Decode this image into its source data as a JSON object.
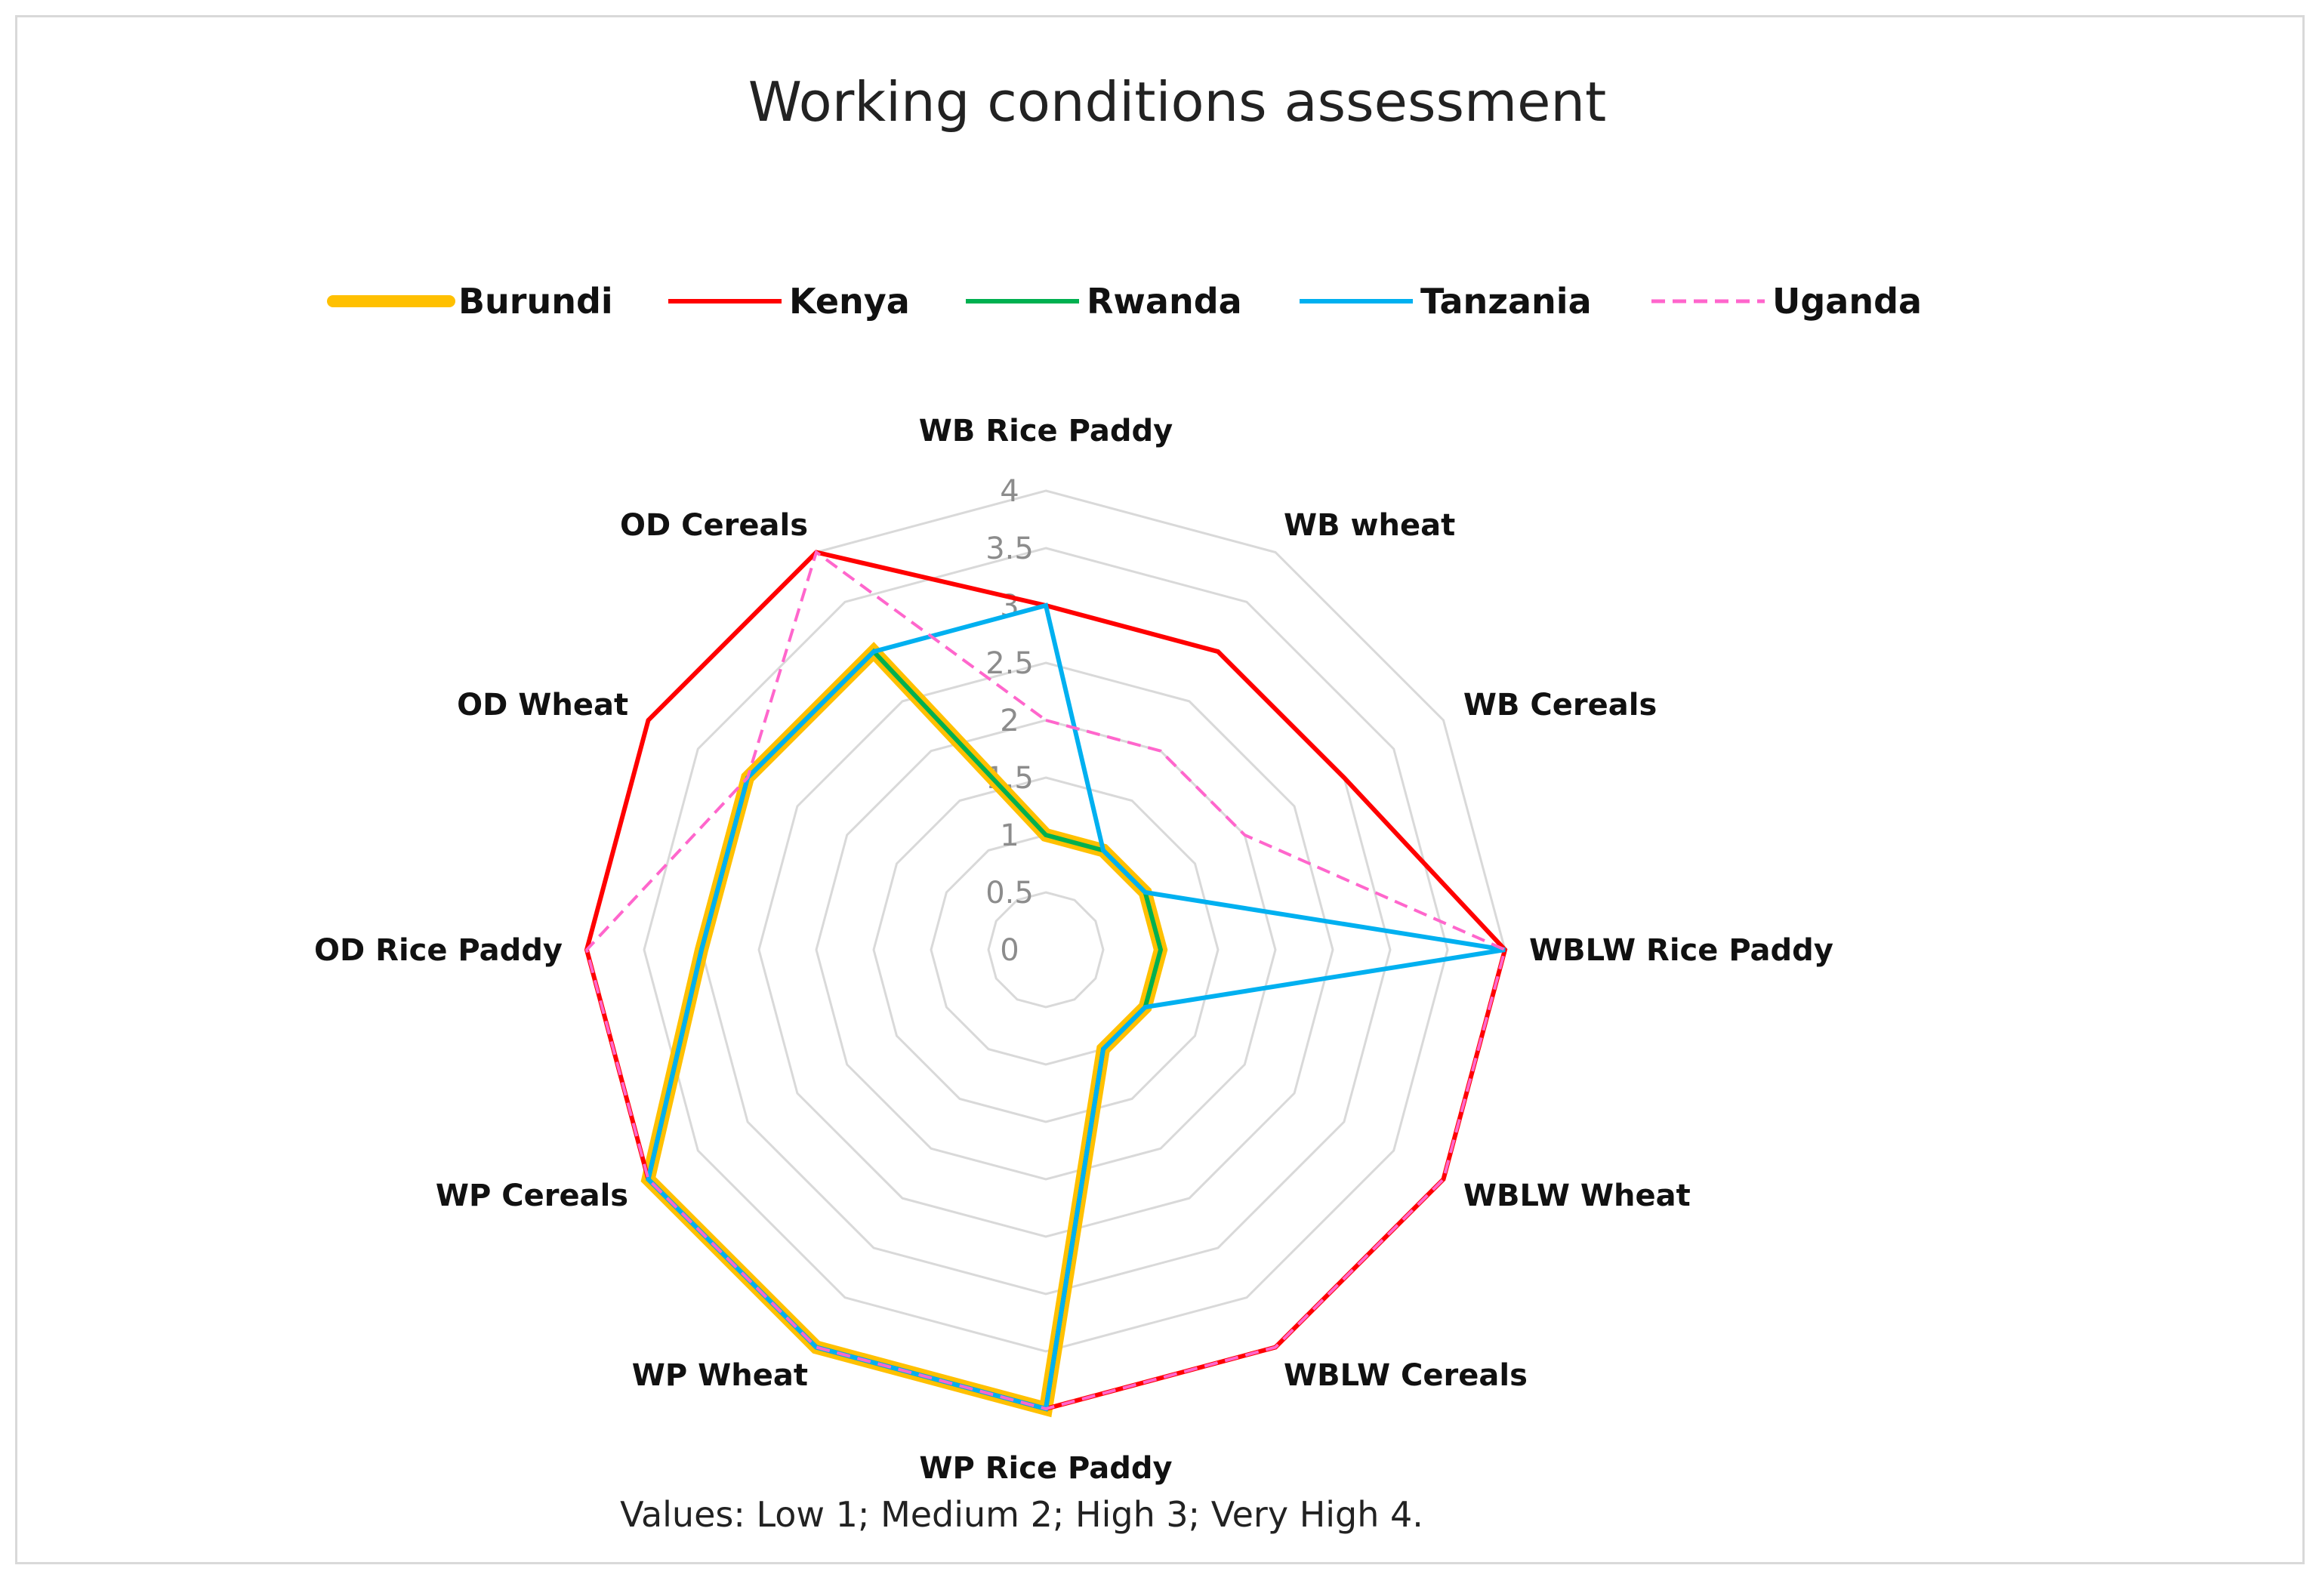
{
  "chart_data": {
    "type": "radar",
    "title": "Working conditions assessment",
    "categories": [
      "WB Rice Paddy",
      "WB wheat",
      "WB Cereals",
      "WBLW Rice Paddy",
      "WBLW Wheat",
      "WBLW Cereals",
      "WP Rice Paddy",
      "WP Wheat",
      "WP Cereals",
      "OD Rice Paddy",
      "OD Wheat",
      "OD Cereals"
    ],
    "ticks": [
      "0",
      "0.5",
      "1",
      "1.5",
      "2",
      "2.5",
      "3",
      "3.5",
      "4"
    ],
    "tick_values": [
      0,
      0.5,
      1,
      1.5,
      2,
      2.5,
      3,
      3.5,
      4
    ],
    "rmax": 4,
    "series": [
      {
        "name": "Burundi",
        "color": "#FFC000",
        "dash": "none",
        "style": "thick",
        "values": [
          1,
          1,
          1,
          1,
          1,
          1,
          4,
          4,
          4,
          3,
          3,
          3
        ]
      },
      {
        "name": "Kenya",
        "color": "#FF0000",
        "dash": "none",
        "style": "normal",
        "values": [
          3,
          3,
          3,
          4,
          4,
          4,
          4,
          4,
          4,
          4,
          4,
          4
        ]
      },
      {
        "name": "Rwanda",
        "color": "#00B050",
        "dash": "none",
        "style": "normal",
        "values": [
          1,
          1,
          1,
          1,
          1,
          1,
          4,
          4,
          4,
          3,
          3,
          3
        ]
      },
      {
        "name": "Tanzania",
        "color": "#00B0F0",
        "dash": "none",
        "style": "normal",
        "values": [
          3,
          1,
          1,
          4,
          1,
          1,
          4,
          4,
          4,
          3,
          3,
          3
        ]
      },
      {
        "name": "Uganda",
        "color": "#FF66CC",
        "dash": "dashed",
        "style": "normal",
        "values": [
          2,
          2,
          2,
          4,
          4,
          4,
          4,
          4,
          4,
          4,
          3,
          4
        ]
      }
    ],
    "note": "Values: Low 1; Medium 2; High 3; Very High 4."
  }
}
